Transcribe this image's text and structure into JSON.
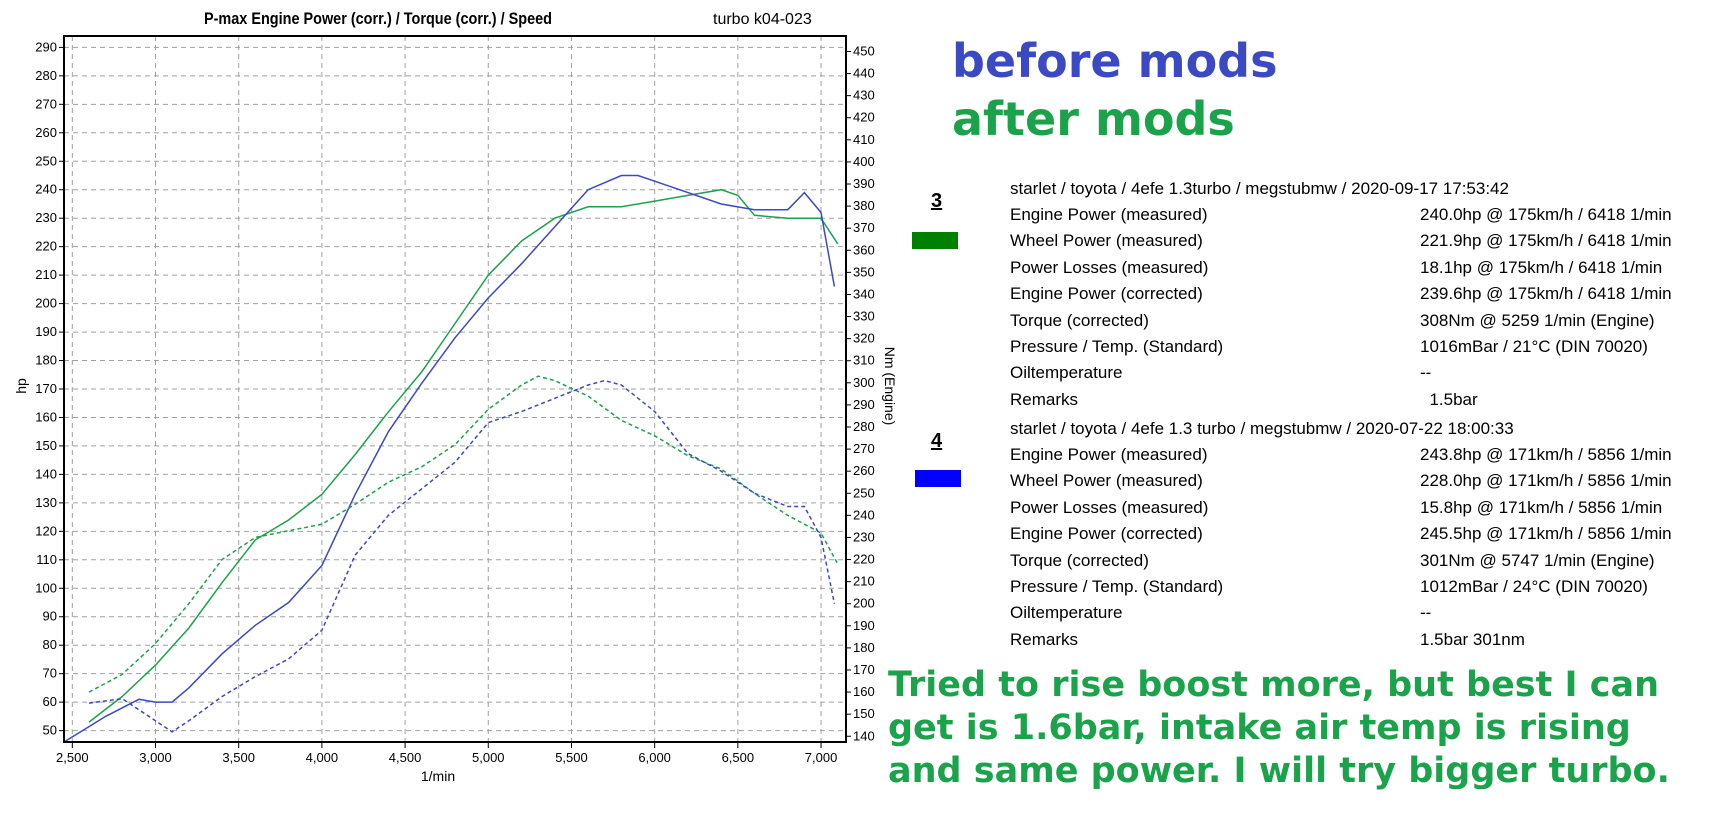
{
  "colors": {
    "green": "#1aa34a",
    "blue": "#3b49c4",
    "run3": "#008000",
    "run4": "#0000ff",
    "grid": "#a0a0a0"
  },
  "chart_data": {
    "type": "line",
    "title": "P-max Engine Power (corr.) / Torque (corr.) / Speed",
    "subtitle": "turbo k04-023",
    "xlabel": "1/min",
    "ylabel": "hp",
    "y2label": "Nm (Engine)",
    "xlim": [
      2450,
      7150
    ],
    "ylim": [
      46,
      294
    ],
    "y2lim": [
      137.4,
      457.0
    ],
    "grid": true,
    "x_ticks": [
      "2,500",
      "3,000",
      "3,500",
      "4,000",
      "4,500",
      "5,000",
      "5,500",
      "6,000",
      "6,500",
      "7,000"
    ],
    "x_tick_values": [
      2500,
      3000,
      3500,
      4000,
      4500,
      5000,
      5500,
      6000,
      6500,
      7000
    ],
    "y_ticks": [
      50,
      60,
      70,
      80,
      90,
      100,
      110,
      120,
      130,
      140,
      150,
      160,
      170,
      180,
      190,
      200,
      210,
      220,
      230,
      240,
      250,
      260,
      270,
      280,
      290
    ],
    "y2_ticks": [
      140,
      150,
      160,
      170,
      180,
      190,
      200,
      210,
      220,
      230,
      240,
      250,
      260,
      270,
      280,
      290,
      300,
      310,
      320,
      330,
      340,
      350,
      360,
      370,
      380,
      390,
      400,
      410,
      420,
      430,
      440,
      450
    ],
    "series": [
      {
        "name": "3",
        "axis": "hp",
        "style": "solid",
        "color": "green",
        "x": [
          2600,
          2800,
          3000,
          3200,
          3400,
          3600,
          3800,
          4000,
          4200,
          4400,
          4600,
          4800,
          5000,
          5200,
          5400,
          5600,
          5800,
          6000,
          6200,
          6400,
          6500,
          6600,
          6800,
          7000,
          7100
        ],
        "y": [
          53,
          62,
          73,
          86,
          102,
          117,
          124,
          133,
          147,
          162,
          176,
          193,
          210,
          222,
          230,
          234,
          234,
          236,
          238,
          240,
          238,
          231,
          230,
          230,
          221
        ]
      },
      {
        "name": "4",
        "axis": "hp",
        "style": "solid",
        "color": "blue",
        "x": [
          2450,
          2700,
          2900,
          3000,
          3100,
          3200,
          3400,
          3600,
          3800,
          4000,
          4200,
          4400,
          4600,
          4800,
          5000,
          5200,
          5400,
          5600,
          5800,
          5900,
          6000,
          6200,
          6400,
          6600,
          6800,
          6900,
          7000,
          7080
        ],
        "y": [
          46,
          55,
          61,
          60,
          60,
          65,
          77,
          87,
          95,
          108,
          133,
          155,
          172,
          188,
          202,
          214,
          227,
          240,
          245,
          245,
          243,
          239,
          235,
          233,
          233,
          239,
          232,
          206
        ]
      },
      {
        "name": "3",
        "axis": "Nm",
        "style": "dashed",
        "color": "green",
        "x": [
          2600,
          2800,
          3000,
          3200,
          3400,
          3600,
          3800,
          4000,
          4200,
          4400,
          4600,
          4800,
          5000,
          5200,
          5300,
          5400,
          5600,
          5800,
          6000,
          6200,
          6400,
          6600,
          6800,
          7000,
          7100
        ],
        "y": [
          160,
          168,
          182,
          200,
          220,
          230,
          233,
          236,
          245,
          255,
          262,
          272,
          288,
          299,
          303,
          301,
          294,
          283,
          276,
          267,
          261,
          250,
          240,
          232,
          218
        ]
      },
      {
        "name": "4",
        "axis": "Nm",
        "style": "dashed",
        "color": "blue",
        "x": [
          2600,
          2800,
          3000,
          3100,
          3200,
          3400,
          3600,
          3800,
          4000,
          4200,
          4400,
          4600,
          4800,
          5000,
          5200,
          5400,
          5600,
          5700,
          5800,
          6000,
          6200,
          6400,
          6600,
          6800,
          6900,
          7000,
          7080
        ],
        "y": [
          155,
          157,
          147,
          142,
          147,
          158,
          167,
          175,
          188,
          222,
          240,
          252,
          264,
          282,
          287,
          293,
          299,
          301,
          299,
          287,
          268,
          260,
          250,
          244,
          244,
          230,
          200
        ]
      }
    ]
  },
  "legend": {
    "before": "before mods",
    "after": "after mods"
  },
  "runs": [
    {
      "number": "3",
      "color": "run3",
      "header": "starlet / toyota / 4efe 1.3turbo / megstubmw / 2020-09-17 17:53:42",
      "rows": [
        {
          "key": "Engine Power (measured)",
          "value": "240.0hp @ 175km/h / 6418 1/min"
        },
        {
          "key": "Wheel Power (measured)",
          "value": "221.9hp @ 175km/h / 6418 1/min"
        },
        {
          "key": "Power Losses (measured)",
          "value": "18.1hp @ 175km/h / 6418 1/min"
        },
        {
          "key": "Engine Power (corrected)",
          "value": "239.6hp @ 175km/h / 6418 1/min"
        },
        {
          "key": "Torque (corrected)",
          "value": "308Nm @ 5259 1/min (Engine)"
        },
        {
          "key": "Pressure / Temp. (Standard)",
          "value": "1016mBar / 21°C   (DIN 70020)"
        },
        {
          "key": "Oiltemperature",
          "value": "--"
        },
        {
          "key": "Remarks",
          "value": "  1.5bar"
        }
      ]
    },
    {
      "number": "4",
      "color": "run4",
      "header": "starlet / toyota / 4efe 1.3 turbo / megstubmw / 2020-07-22 18:00:33",
      "rows": [
        {
          "key": "Engine Power (measured)",
          "value": "243.8hp @ 171km/h / 5856 1/min"
        },
        {
          "key": "Wheel Power (measured)",
          "value": "228.0hp @ 171km/h / 5856 1/min"
        },
        {
          "key": "Power Losses (measured)",
          "value": "15.8hp @ 171km/h / 5856 1/min"
        },
        {
          "key": "Engine Power (corrected)",
          "value": "245.5hp @ 171km/h / 5856 1/min"
        },
        {
          "key": "Torque (corrected)",
          "value": "301Nm @ 5747 1/min (Engine)"
        },
        {
          "key": "Pressure / Temp. (Standard)",
          "value": "1012mBar / 24°C   (DIN 70020)"
        },
        {
          "key": "Oiltemperature",
          "value": "--"
        },
        {
          "key": "Remarks",
          "value": "1.5bar 301nm"
        }
      ]
    }
  ],
  "note": "Tried to rise boost more, but best I can get is 1.6bar, intake air temp is rising and same power. I will try bigger turbo."
}
